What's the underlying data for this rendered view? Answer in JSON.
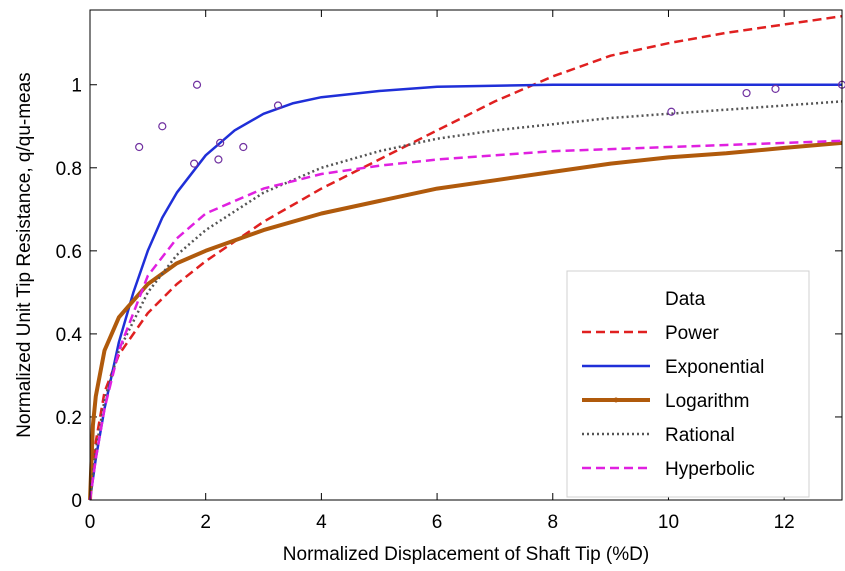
{
  "chart_data": {
    "type": "line",
    "title": "",
    "xlabel": "Normalized Displacement of Shaft Tip (%D)",
    "ylabel": "Normalized Unit Tip Resistance, q/qu-meas",
    "xlim": [
      0,
      13
    ],
    "ylim": [
      0,
      1.18
    ],
    "xticks": [
      0,
      2,
      4,
      6,
      8,
      10,
      12
    ],
    "xtick_labels": [
      "0",
      "2",
      "4",
      "6",
      "8",
      "10",
      "12"
    ],
    "yticks": [
      0,
      0.2,
      0.4,
      0.6,
      0.8,
      1
    ],
    "ytick_labels": [
      "0",
      "0.2",
      "0.4",
      "0.6",
      "0.8",
      "1"
    ],
    "legend_position": "bottom-right",
    "grid": false,
    "data_points": {
      "name": "Data",
      "color": "#7030a0",
      "marker": "circle-open",
      "x": [
        0.85,
        1.25,
        1.85,
        1.8,
        2.25,
        2.22,
        2.65,
        3.25,
        10.05,
        11.35,
        11.85,
        13.0
      ],
      "y": [
        0.85,
        0.9,
        1.0,
        0.81,
        0.86,
        0.82,
        0.85,
        0.95,
        0.935,
        0.98,
        0.99,
        1.0
      ]
    },
    "series": [
      {
        "name": "Power",
        "color": "#e02020",
        "style": "dashed",
        "x": [
          0,
          0.1,
          0.25,
          0.5,
          1,
          1.5,
          2,
          3,
          4,
          5,
          6,
          7,
          8,
          8.6,
          9,
          10,
          11,
          12,
          13
        ],
        "y": [
          0,
          0.14,
          0.26,
          0.35,
          0.45,
          0.52,
          0.575,
          0.67,
          0.75,
          0.82,
          0.89,
          0.96,
          1.02,
          1.05,
          1.07,
          1.1,
          1.125,
          1.145,
          1.165
        ]
      },
      {
        "name": "Exponential",
        "color": "#1f2fd8",
        "style": "solid",
        "x": [
          0,
          0.1,
          0.25,
          0.5,
          0.75,
          1,
          1.25,
          1.5,
          2,
          2.5,
          3,
          3.5,
          4,
          5,
          6,
          8,
          10,
          13
        ],
        "y": [
          0,
          0.1,
          0.22,
          0.38,
          0.5,
          0.6,
          0.68,
          0.74,
          0.83,
          0.89,
          0.93,
          0.955,
          0.97,
          0.985,
          0.995,
          1.0,
          1.0,
          1.0
        ]
      },
      {
        "name": "Logarithm",
        "color": "#b05a0c",
        "style": "solid-thick",
        "x": [
          0,
          0.05,
          0.1,
          0.25,
          0.5,
          1,
          1.5,
          2,
          3,
          4,
          5,
          6,
          7,
          8,
          9,
          10,
          11,
          12,
          13
        ],
        "y": [
          0,
          0.18,
          0.25,
          0.36,
          0.44,
          0.52,
          0.57,
          0.6,
          0.65,
          0.69,
          0.72,
          0.75,
          0.77,
          0.79,
          0.81,
          0.825,
          0.835,
          0.848,
          0.86
        ]
      },
      {
        "name": "Rational",
        "color": "#555555",
        "style": "dotted",
        "x": [
          0,
          0.1,
          0.25,
          0.5,
          1,
          1.5,
          2,
          3,
          4,
          5,
          6,
          7,
          8,
          9,
          10,
          11,
          12,
          13
        ],
        "y": [
          0,
          0.12,
          0.24,
          0.36,
          0.5,
          0.59,
          0.65,
          0.74,
          0.8,
          0.84,
          0.87,
          0.89,
          0.905,
          0.92,
          0.93,
          0.94,
          0.95,
          0.96
        ]
      },
      {
        "name": "Hyperbolic",
        "color": "#e020e0",
        "style": "dashed",
        "x": [
          0,
          0.1,
          0.25,
          0.5,
          1,
          1.5,
          2,
          3,
          4,
          5,
          6,
          7,
          8,
          9,
          10,
          11,
          12,
          13
        ],
        "y": [
          0,
          0.1,
          0.22,
          0.36,
          0.54,
          0.63,
          0.69,
          0.75,
          0.785,
          0.805,
          0.82,
          0.83,
          0.84,
          0.845,
          0.85,
          0.855,
          0.86,
          0.865
        ]
      }
    ]
  }
}
